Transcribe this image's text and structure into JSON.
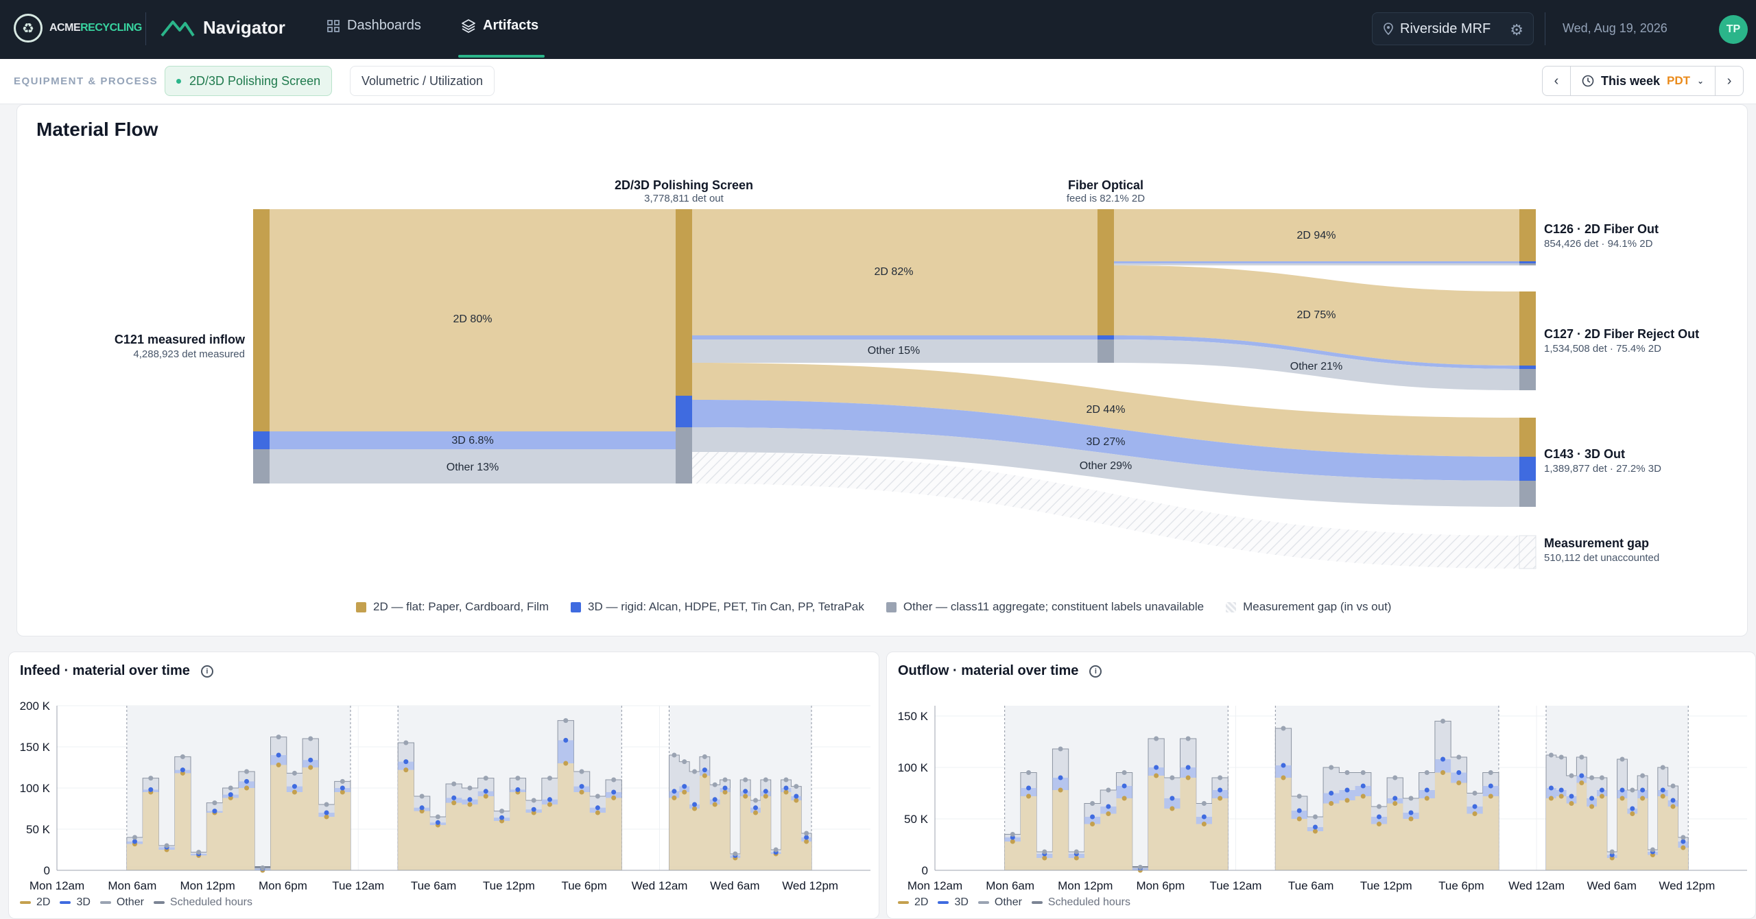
{
  "header": {
    "logo_text_a": "ACME",
    "logo_text_b": "RECYCLING",
    "app_name": "Navigator",
    "tabs": [
      {
        "label": "Dashboards",
        "icon": "grid-icon"
      },
      {
        "label": "Artifacts",
        "icon": "layers-icon",
        "active": true
      }
    ],
    "site": "Riverside MRF",
    "date": "Wed, Aug 19, 2026",
    "avatar_initials": "TP"
  },
  "subbar": {
    "section_label": "EQUIPMENT & PROCESS",
    "chips": [
      {
        "label": "2D/3D Polishing Screen",
        "active": true
      },
      {
        "label": "Volumetric / Utilization",
        "active": false
      }
    ],
    "period": "This week",
    "timezone": "PDT"
  },
  "flow": {
    "title": "Material Flow",
    "colors": {
      "2d": "#c4a04e",
      "2d_light": "#e4cfa2",
      "3d": "#3f6be0",
      "3d_light": "#9fb4ee",
      "other": "#9aa3b2",
      "other_light": "#cdd3dd"
    },
    "nodes": {
      "inflow": {
        "name": "C121 measured inflow",
        "sub": "4,288,923 det measured"
      },
      "polish": {
        "name": "2D/3D Polishing Screen",
        "sub": "3,778,811 det out"
      },
      "fiber": {
        "name": "Fiber Optical",
        "sub": "feed is 82.1% 2D"
      },
      "c126": {
        "name": "C126 · 2D Fiber Out",
        "sub": "854,426 det · 94.1% 2D"
      },
      "c127": {
        "name": "C127 · 2D Fiber Reject Out",
        "sub": "1,534,508 det · 75.4% 2D"
      },
      "c143": {
        "name": "C143 · 3D Out",
        "sub": "1,389,877 det · 27.2% 3D"
      },
      "gap": {
        "name": "Measurement gap",
        "sub": "510,112 det unaccounted"
      }
    },
    "link_labels": {
      "in_2d": "2D 80%",
      "in_3d": "3D 6.8%",
      "in_other": "Other 13%",
      "p_2d": "2D 82%",
      "p_other": "Other 15%",
      "f_2d_c126": "2D 94%",
      "f_2d_c127": "2D 75%",
      "f_other_c127": "Other 21%",
      "c143_2d": "2D 44%",
      "c143_3d": "3D 27%",
      "c143_other": "Other 29%"
    },
    "legend": [
      {
        "label": "2D — flat: Paper, Cardboard, Film",
        "color": "#c4a04e"
      },
      {
        "label": "3D — rigid: Alcan, HDPE, PET, Tin Can, PP, TetraPak",
        "color": "#3f6be0"
      },
      {
        "label": "Other — class11 aggregate; constituent labels unavailable",
        "color": "#9aa3b2"
      },
      {
        "label": "Measurement gap (in vs out)",
        "color": "hatched"
      }
    ]
  },
  "infeed": {
    "title": "Infeed · material over time",
    "chart_data": {
      "type": "area",
      "y_ticks": [
        "0",
        "50 K",
        "100 K",
        "150 K",
        "200 K"
      ],
      "ylim": [
        0,
        200000
      ],
      "x_ticks": [
        "Mon 12am",
        "Mon 6am",
        "Mon 12pm",
        "Mon 6pm",
        "Tue 12am",
        "Tue 6am",
        "Tue 12pm",
        "Tue 6pm",
        "Wed 12am",
        "Wed 6am",
        "Wed 12pm"
      ],
      "series": [
        {
          "name": "2D",
          "values": [
            32,
            95,
            25,
            118,
            18,
            70,
            88,
            100,
            0,
            128,
            95,
            125,
            65,
            95,
            122,
            72,
            55,
            82,
            80,
            90,
            60,
            95,
            70,
            80,
            130,
            95,
            70,
            88,
            88,
            95,
            75,
            115,
            80,
            95,
            15,
            90,
            70,
            90,
            20,
            95,
            85,
            35
          ]
        },
        {
          "name": "3D",
          "values": [
            35,
            98,
            28,
            122,
            20,
            72,
            92,
            108,
            2,
            140,
            102,
            134,
            70,
            100,
            132,
            76,
            58,
            88,
            86,
            96,
            64,
            98,
            74,
            86,
            158,
            102,
            76,
            95,
            96,
            102,
            80,
            122,
            86,
            100,
            18,
            96,
            76,
            96,
            22,
            100,
            90,
            40
          ]
        },
        {
          "name": "Other",
          "values": [
            40,
            112,
            30,
            138,
            22,
            82,
            100,
            120,
            3,
            162,
            118,
            160,
            80,
            108,
            155,
            90,
            65,
            105,
            100,
            112,
            72,
            112,
            85,
            112,
            182,
            120,
            90,
            110,
            140,
            132,
            120,
            138,
            104,
            110,
            20,
            110,
            85,
            110,
            25,
            110,
            102,
            45
          ]
        }
      ]
    }
  },
  "outflow": {
    "title": "Outflow · material over time",
    "chart_data": {
      "type": "area",
      "y_ticks": [
        "0",
        "50 K",
        "100 K",
        "150 K"
      ],
      "ylim": [
        0,
        160000
      ],
      "x_ticks": [
        "Mon 12am",
        "Mon 6am",
        "Mon 12pm",
        "Mon 6pm",
        "Tue 12am",
        "Tue 6am",
        "Tue 12pm",
        "Tue 6pm",
        "Wed 12am",
        "Wed 6am",
        "Wed 12pm"
      ],
      "series": [
        {
          "name": "2D",
          "values": [
            28,
            72,
            12,
            78,
            12,
            45,
            55,
            70,
            0,
            92,
            60,
            90,
            45,
            70,
            90,
            50,
            38,
            65,
            68,
            72,
            45,
            65,
            50,
            70,
            95,
            85,
            55,
            72,
            70,
            72,
            65,
            85,
            62,
            72,
            12,
            70,
            55,
            70,
            15,
            72,
            62,
            22
          ]
        },
        {
          "name": "3D",
          "values": [
            32,
            80,
            16,
            90,
            16,
            52,
            62,
            82,
            2,
            100,
            70,
            100,
            52,
            78,
            102,
            58,
            42,
            75,
            78,
            82,
            52,
            70,
            56,
            78,
            108,
            95,
            62,
            82,
            80,
            78,
            72,
            92,
            70,
            78,
            15,
            78,
            60,
            78,
            18,
            78,
            68,
            28
          ]
        },
        {
          "name": "Other",
          "values": [
            35,
            95,
            18,
            118,
            18,
            65,
            78,
            95,
            3,
            128,
            90,
            128,
            65,
            90,
            138,
            72,
            52,
            100,
            95,
            95,
            62,
            90,
            70,
            95,
            145,
            110,
            75,
            95,
            112,
            110,
            92,
            110,
            90,
            90,
            18,
            108,
            78,
            92,
            20,
            100,
            82,
            32
          ]
        }
      ]
    }
  },
  "mini_legend": [
    {
      "label": "2D",
      "color": "#c4a04e"
    },
    {
      "label": "3D",
      "color": "#3f6be0"
    },
    {
      "label": "Other",
      "color": "#9aa3b2"
    },
    {
      "label": "Scheduled hours",
      "color": "#7b8494"
    }
  ]
}
